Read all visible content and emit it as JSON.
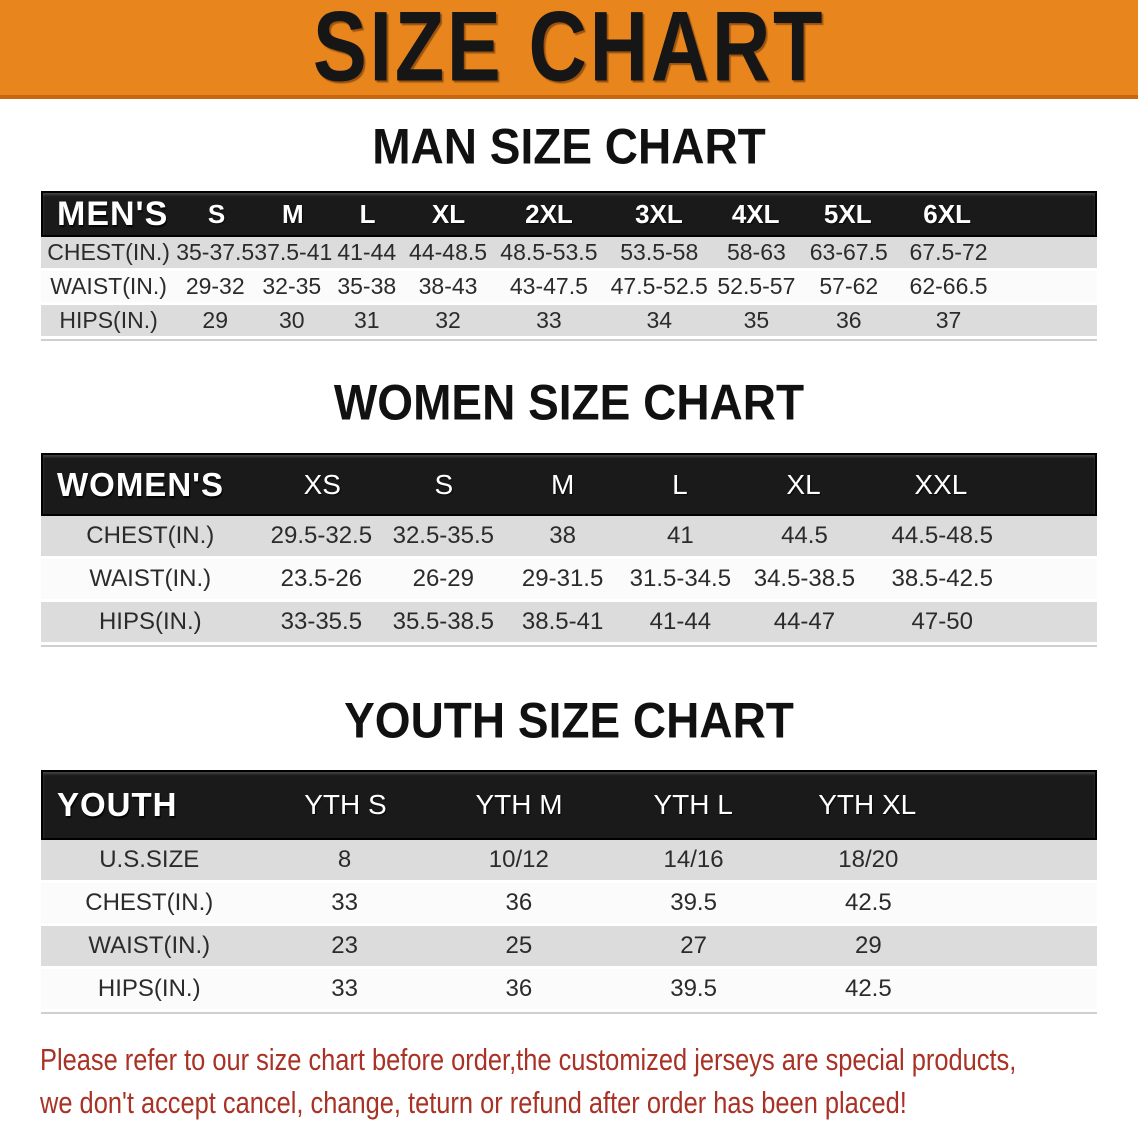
{
  "banner": {
    "title": "SIZE CHART"
  },
  "sections": [
    {
      "heading": "MAN SIZE CHART",
      "corner": "MEN'S",
      "columns": [
        "S",
        "M",
        "L",
        "XL",
        "2XL",
        "3XL",
        "4XL",
        "5XL",
        "6XL"
      ],
      "rows": [
        {
          "label": "CHEST(IN.)",
          "values": [
            "35-37.5",
            "37.5-41",
            "41-44",
            "44-48.5",
            "48.5-53.5",
            "53.5-58",
            "58-63",
            "63-67.5",
            "67.5-72"
          ]
        },
        {
          "label": "WAIST(IN.)",
          "values": [
            "29-32",
            "32-35",
            "35-38",
            "38-43",
            "43-47.5",
            "47.5-52.5",
            "52.5-57",
            "57-62",
            "62-66.5"
          ]
        },
        {
          "label": "HIPS(IN.)",
          "values": [
            "29",
            "30",
            "31",
            "32",
            "33",
            "34",
            "35",
            "36",
            "37"
          ]
        }
      ]
    },
    {
      "heading": "WOMEN SIZE CHART",
      "corner": "WOMEN'S",
      "columns": [
        "XS",
        "S",
        "M",
        "L",
        "XL",
        "XXL"
      ],
      "rows": [
        {
          "label": "CHEST(IN.)",
          "values": [
            "29.5-32.5",
            "32.5-35.5",
            "38",
            "41",
            "44.5",
            "44.5-48.5"
          ]
        },
        {
          "label": "WAIST(IN.)",
          "values": [
            "23.5-26",
            "26-29",
            "29-31.5",
            "31.5-34.5",
            "34.5-38.5",
            "38.5-42.5"
          ]
        },
        {
          "label": "HIPS(IN.)",
          "values": [
            "33-35.5",
            "35.5-38.5",
            "38.5-41",
            "41-44",
            "44-47",
            "47-50"
          ]
        }
      ]
    },
    {
      "heading": "YOUTH SIZE CHART",
      "corner": "YOUTH",
      "columns": [
        "YTH S",
        "YTH M",
        "YTH L",
        "YTH XL"
      ],
      "rows": [
        {
          "label": "U.S.SIZE",
          "values": [
            "8",
            "10/12",
            "14/16",
            "18/20"
          ]
        },
        {
          "label": "CHEST(IN.)",
          "values": [
            "33",
            "36",
            "39.5",
            "42.5"
          ]
        },
        {
          "label": "WAIST(IN.)",
          "values": [
            "23",
            "25",
            "27",
            "29"
          ]
        },
        {
          "label": "HIPS(IN.)",
          "values": [
            "33",
            "36",
            "39.5",
            "42.5"
          ]
        }
      ]
    }
  ],
  "disclaimer": {
    "line1": "Please refer to our size chart before order,the customized jerseys are special products,",
    "line2": "we don't accept cancel, change, teturn or refund after order has been placed!"
  },
  "colors": {
    "banner_bg": "#E8861D",
    "banner_edge": "#C9660F",
    "band_bg": "#1A1A1A",
    "band_text": "#FFFFFF",
    "stripe_gray": "#DCDCDC",
    "stripe_white": "#FBFBFB",
    "heading_text": "#111111",
    "value_text": "#2B2B2B",
    "disclaimer_red": "#A93226"
  }
}
